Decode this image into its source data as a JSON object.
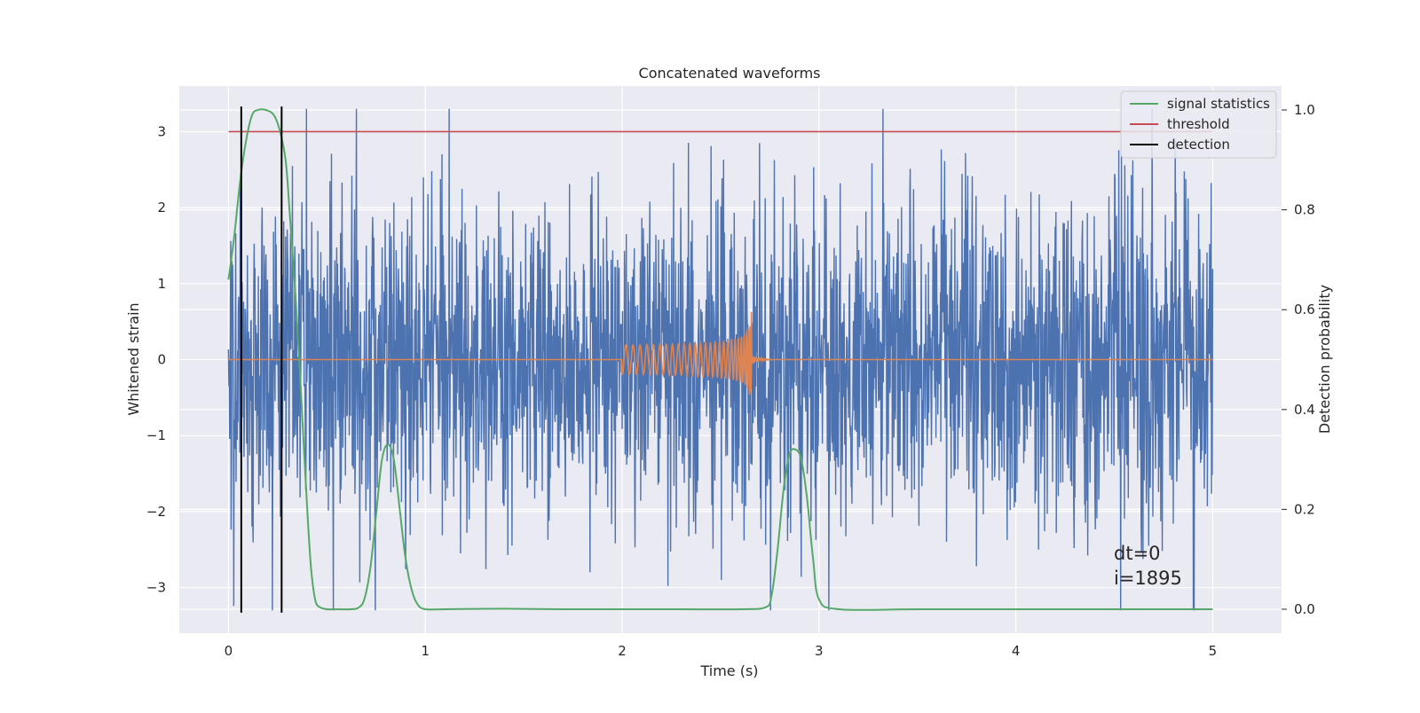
{
  "chart_data": {
    "type": "line",
    "title": "Concatenated waveforms",
    "xlabel": "Time (s)",
    "ylabel": "Whitened strain",
    "y2label": "Detection probability",
    "xlim": [
      -0.25,
      5.35
    ],
    "ylim": [
      -3.6,
      3.6
    ],
    "y2lim": [
      -0.048,
      1.048
    ],
    "xticks": [
      0,
      1,
      2,
      3,
      4,
      5
    ],
    "yticks": [
      -3,
      -2,
      -1,
      0,
      1,
      2,
      3
    ],
    "y2ticks": [
      0.0,
      0.2,
      0.4,
      0.6,
      0.8,
      1.0
    ],
    "xtick_labels": [
      "0",
      "1",
      "2",
      "3",
      "4",
      "5"
    ],
    "ytick_labels": [
      "−3",
      "−2",
      "−1",
      "0",
      "1",
      "2",
      "3"
    ],
    "y2tick_labels": [
      "0.0",
      "0.2",
      "0.4",
      "0.6",
      "0.8",
      "1.0"
    ],
    "grid": true,
    "legend_position": "top-right",
    "series": [
      {
        "role": "strain-noise",
        "axis": "left",
        "color": "#4c72b0",
        "x_range": [
          0,
          5
        ],
        "amplitude_envelope": [
          -3.3,
          3.3
        ]
      },
      {
        "role": "injected-chirp",
        "axis": "left",
        "color": "#dd8452",
        "x_range": [
          0,
          5
        ],
        "chirp_start": 2.0,
        "chirp_merger": 2.66,
        "start_amplitude": 0.15,
        "peak_amplitude": 0.85
      },
      {
        "name": "signal statistics",
        "axis": "right",
        "color": "#55a868",
        "x": [
          0.0,
          0.03,
          0.06,
          0.09,
          0.12,
          0.15,
          0.19,
          0.23,
          0.26,
          0.29,
          0.31,
          0.34,
          0.37,
          0.4,
          0.42,
          0.44,
          0.46,
          0.5,
          0.56,
          0.62,
          0.66,
          0.69,
          0.72,
          0.75,
          0.78,
          0.81,
          0.84,
          0.87,
          0.9,
          0.93,
          0.96,
          1.0,
          1.1,
          1.4,
          1.7,
          2.0,
          2.3,
          2.6,
          2.73,
          2.76,
          2.79,
          2.82,
          2.85,
          2.88,
          2.91,
          2.94,
          2.97,
          3.0,
          3.1,
          3.5,
          4.0,
          4.5,
          5.0
        ],
        "y": [
          0.66,
          0.75,
          0.86,
          0.94,
          0.99,
          1.0,
          1.0,
          0.99,
          0.96,
          0.9,
          0.8,
          0.63,
          0.42,
          0.2,
          0.08,
          0.02,
          0.005,
          0.0,
          0.0,
          0.0,
          0.003,
          0.02,
          0.08,
          0.19,
          0.3,
          0.33,
          0.3,
          0.2,
          0.1,
          0.04,
          0.01,
          0.0,
          0.0,
          0.001,
          0.0,
          0.0,
          0.0,
          0.0,
          0.004,
          0.03,
          0.12,
          0.24,
          0.31,
          0.32,
          0.3,
          0.22,
          0.1,
          0.02,
          0.0,
          0.0,
          0.0,
          0.0,
          0.0
        ]
      },
      {
        "name": "threshold",
        "axis": "left",
        "color": "#c44e52",
        "x": [
          0,
          5
        ],
        "y": [
          3,
          3
        ]
      },
      {
        "name": "detection",
        "axis": "left",
        "color": "#000000",
        "vlines": [
          0.065,
          0.27
        ],
        "y_range": [
          -3.33,
          3.33
        ]
      }
    ],
    "annotations": [
      "dt=0",
      "i=1895"
    ]
  }
}
